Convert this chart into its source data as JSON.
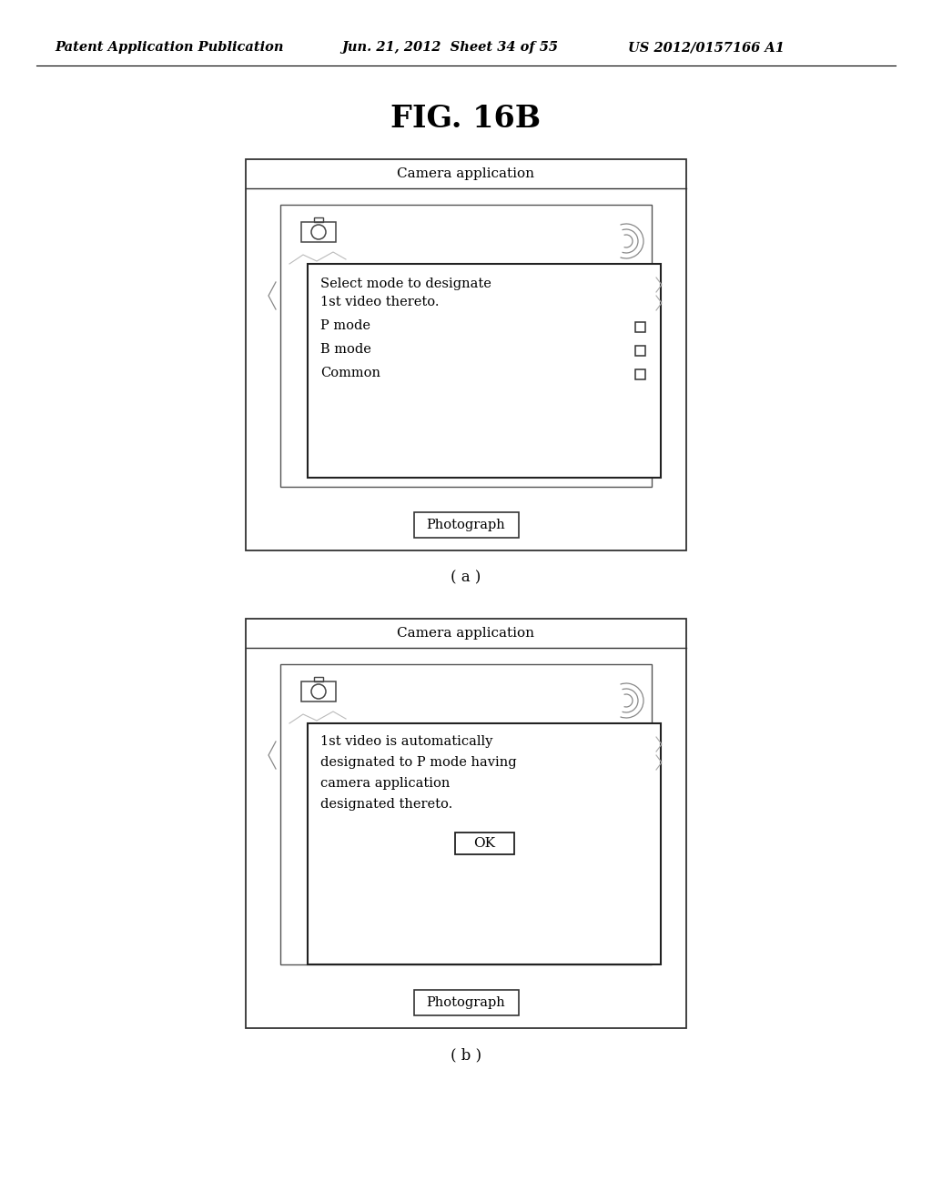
{
  "bg_color": "#ffffff",
  "header_text": "Patent Application Publication",
  "header_date": "Jun. 21, 2012  Sheet 34 of 55",
  "header_patent": "US 2012/0157166 A1",
  "fig_title": "FIG. 16B",
  "panel_a_label": "( a )",
  "panel_b_label": "( b )",
  "panel_a": {
    "title": "Camera application",
    "dialog_title_line1": "Select mode to designate",
    "dialog_title_line2": "1st video thereto.",
    "modes": [
      "P mode",
      "B mode",
      "Common"
    ],
    "button_text": "Photograph"
  },
  "panel_b": {
    "title": "Camera application",
    "dialog_line1": "1st video is automatically",
    "dialog_line2": "designated to P mode having",
    "dialog_line3": "camera application",
    "dialog_line4": "designated thereto.",
    "ok_button": "OK",
    "button_text": "Photograph"
  }
}
